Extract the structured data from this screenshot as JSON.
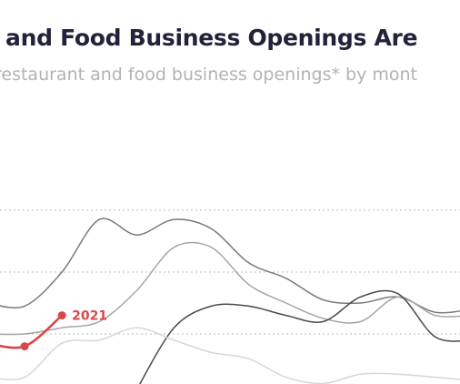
{
  "header": {
    "title": "t and Food Business Openings Are",
    "subtitle": "restaurant and food business openings* by mont"
  },
  "chart_data": {
    "type": "line",
    "title": "t and Food Business Openings Are",
    "subtitle": "restaurant and food business openings* by mont",
    "xlabel": "",
    "ylabel": "",
    "x": [
      0,
      1,
      2,
      3,
      4,
      5,
      6,
      7,
      8,
      9,
      10,
      11,
      12,
      13
    ],
    "ylim": [
      0,
      100
    ],
    "gridlines": [
      20,
      40,
      60
    ],
    "grid": true,
    "series": [
      {
        "name": "",
        "color": "#7a7a7a",
        "values": [
          30,
          29,
          40,
          57,
          52,
          57,
          54,
          43,
          38,
          31,
          30,
          32,
          27,
          28
        ]
      },
      {
        "name": "",
        "color": "#a6a6a6",
        "values": [
          20,
          20,
          22,
          24,
          34,
          48,
          48,
          36,
          30,
          25,
          24,
          32,
          26,
          26
        ]
      },
      {
        "name": "",
        "color": "#494949",
        "values": [
          null,
          null,
          null,
          null,
          2,
          22,
          29,
          29,
          26,
          24,
          32,
          33,
          19,
          18
        ]
      },
      {
        "name": "",
        "color": "#d6d6d6",
        "values": [
          6,
          6,
          17,
          18,
          22,
          18,
          14,
          12,
          6,
          4,
          7,
          7,
          6,
          5
        ]
      },
      {
        "name": "2021",
        "color": "#d94848",
        "values": [
          17,
          16,
          26,
          null,
          null,
          null,
          null,
          null,
          null,
          null,
          null,
          null,
          null,
          null
        ]
      }
    ]
  }
}
